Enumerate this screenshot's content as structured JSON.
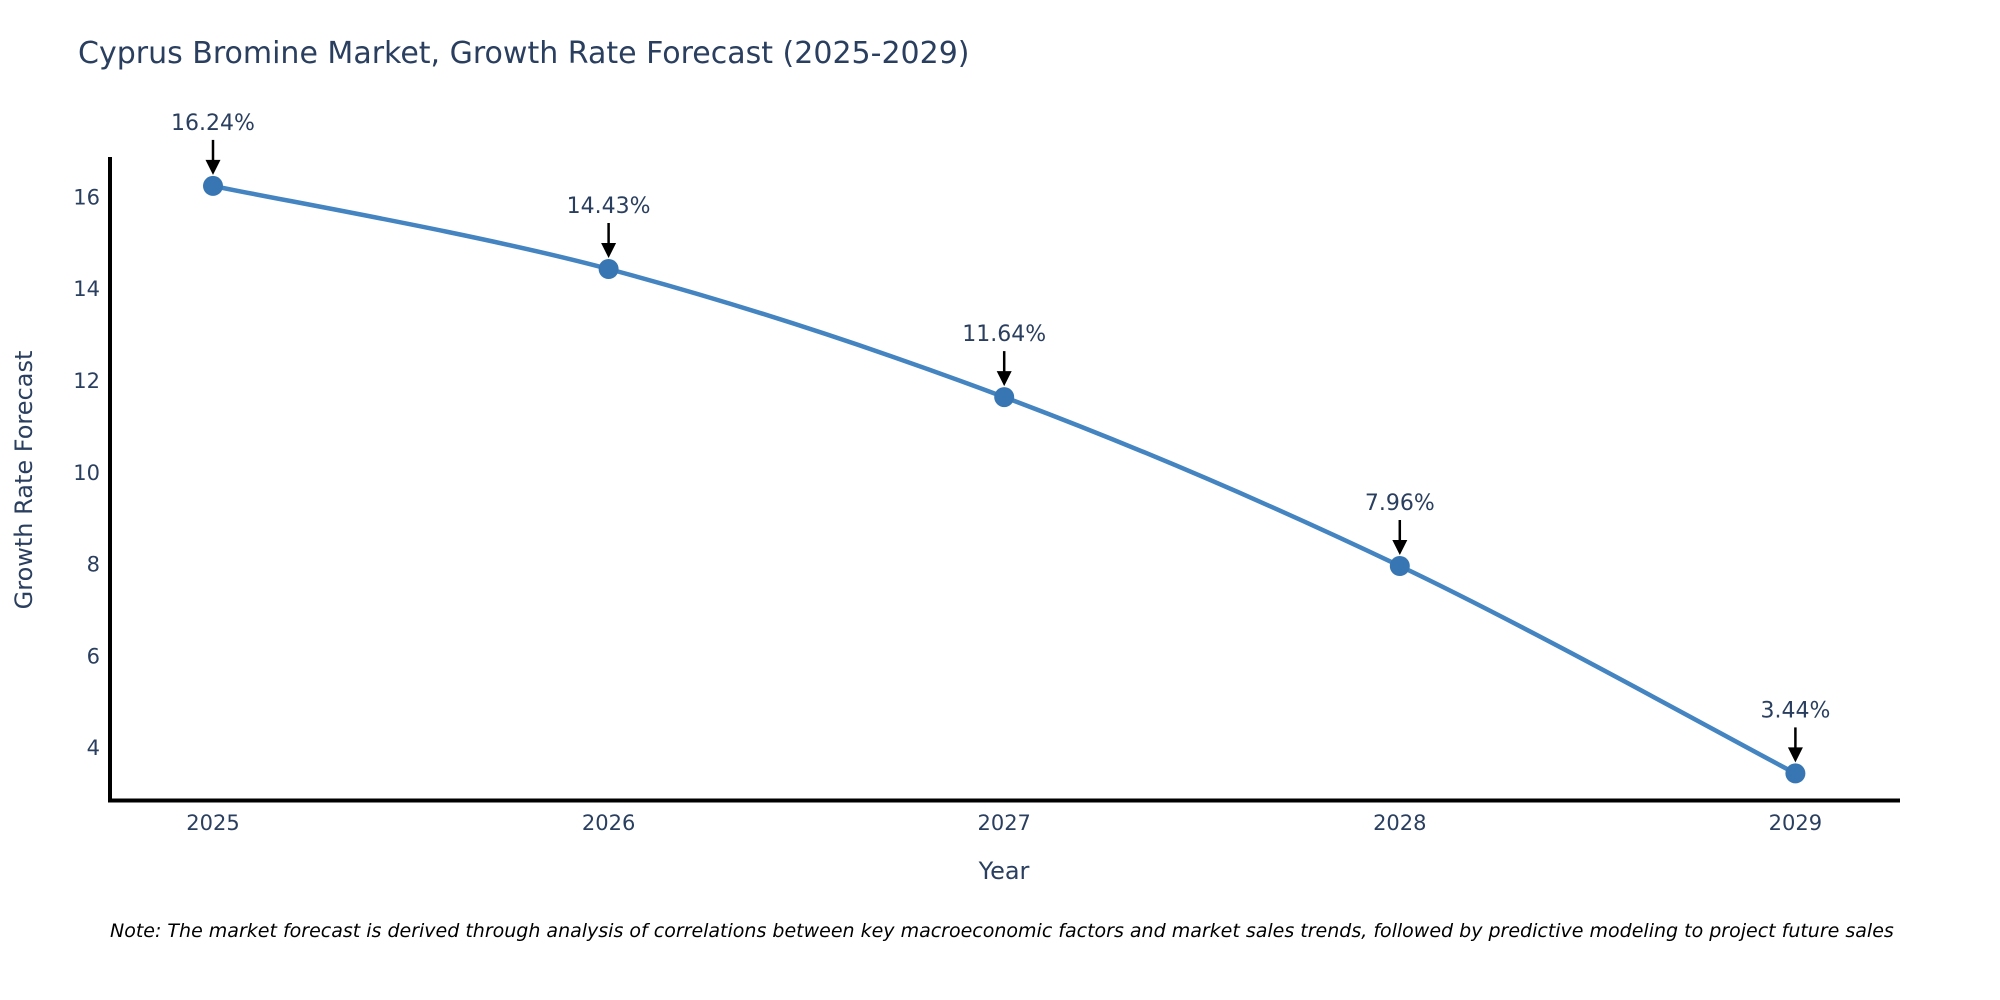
{
  "note": "Note: The market forecast is derived through analysis of correlations between key macroeconomic factors and market sales trends, followed by predictive modeling to project future sales",
  "chart_data": {
    "type": "line",
    "title": "Cyprus Bromine Market, Growth Rate Forecast (2025-2029)",
    "xlabel": "Year",
    "ylabel": "Growth Rate Forecast",
    "x": [
      2025,
      2026,
      2027,
      2028,
      2029
    ],
    "values": [
      16.24,
      14.43,
      11.64,
      7.96,
      3.44
    ],
    "point_labels": [
      "16.24%",
      "14.43%",
      "11.64%",
      "7.96%",
      "3.44%"
    ],
    "yticks": [
      4,
      6,
      8,
      10,
      12,
      14,
      16
    ],
    "ylim": [
      2.85,
      16.87
    ],
    "grid": false,
    "legend": "none",
    "line_shape": "spline",
    "annotations_have_arrows": true,
    "colors": {
      "line": "#4384c1",
      "marker": "#3776b3",
      "axis": "#000000",
      "annotation_arrow": "#000000",
      "text": "#2a3f5f",
      "note_text": "#000000",
      "background": "#ffffff"
    }
  }
}
